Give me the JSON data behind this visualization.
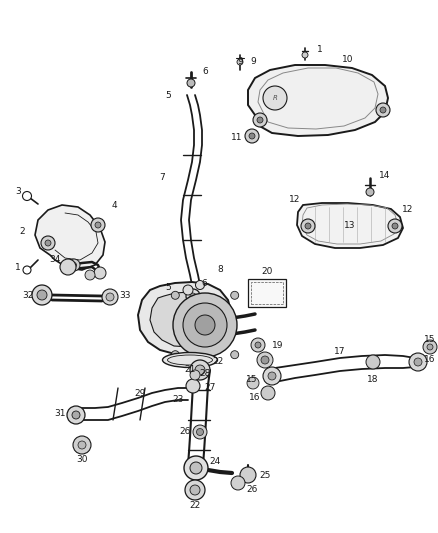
{
  "background_color": "#ffffff",
  "line_color": "#1a1a1a",
  "label_color": "#1a1a1a",
  "fig_width": 4.38,
  "fig_height": 5.33,
  "dpi": 100
}
